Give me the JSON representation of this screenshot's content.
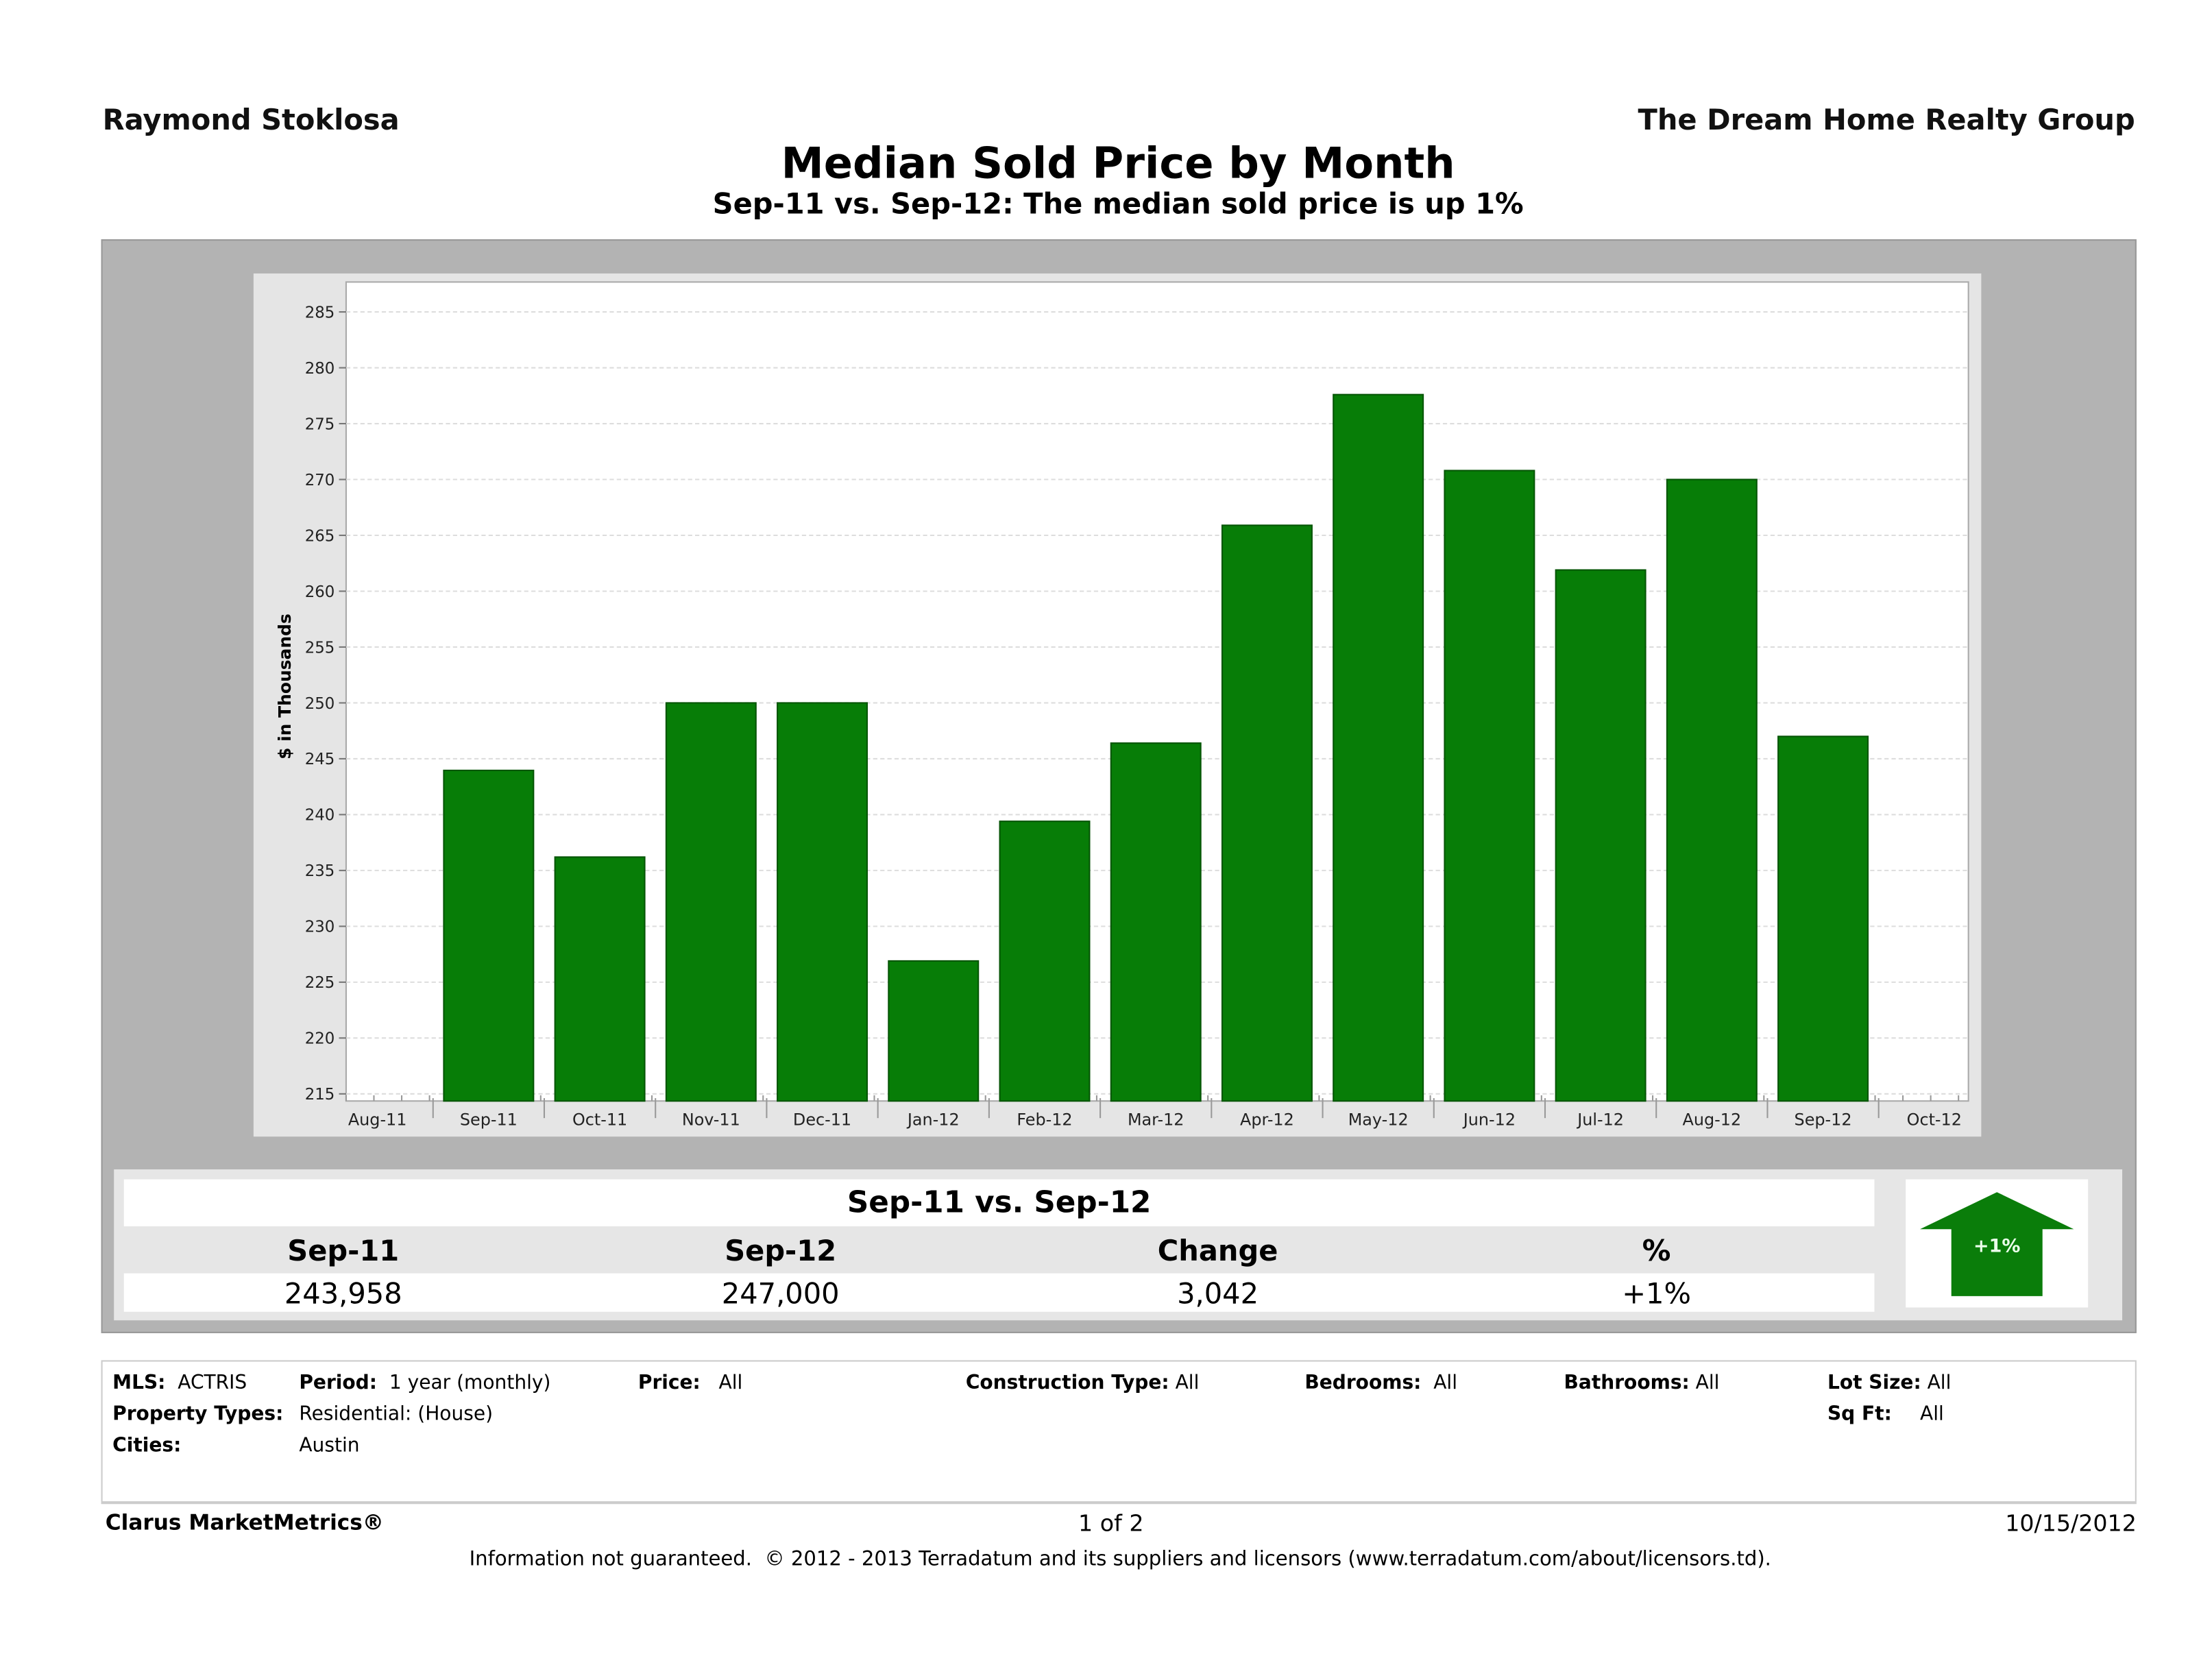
{
  "header": {
    "agent": "Raymond Stoklosa",
    "company": "The Dream Home Realty Group"
  },
  "summary": {
    "title": "Sep-11 vs. Sep-12",
    "columns": [
      "Sep-11",
      "Sep-12",
      "Change",
      "%"
    ],
    "values": [
      "243,958",
      "247,000",
      "3,042",
      "+1%"
    ],
    "badge": "+1%",
    "badge_color": "#0a7d0a"
  },
  "filters": {
    "mls_label": "MLS:",
    "mls": "ACTRIS",
    "period_label": "Period:",
    "period": "1 year (monthly)",
    "price_label": "Price:",
    "price": "All",
    "construction_label": "Construction Type:",
    "construction": "All",
    "bedrooms_label": "Bedrooms:",
    "bedrooms": "All",
    "bathrooms_label": "Bathrooms:",
    "bathrooms": "All",
    "lot_label": "Lot Size:",
    "lot": "All",
    "property_label": "Property Types:",
    "property": "Residential: (House)",
    "sqft_label": "Sq Ft:",
    "sqft": "All",
    "cities_label": "Cities:",
    "cities": "Austin"
  },
  "footer": {
    "brand": "Clarus MarketMetrics®",
    "page": "1 of 2",
    "date": "10/15/2012",
    "disclaimer": "Information not guaranteed.  © 2012 - 2013 Terradatum and its suppliers and licensors (www.terradatum.com/about/licensors.td)."
  },
  "chart_data": {
    "type": "bar",
    "title": "Median Sold Price by Month",
    "subtitle": "Sep-11 vs. Sep-12:  The median sold price is up 1%",
    "xlabel": "",
    "ylabel": "$ in Thousands",
    "ylim": [
      215,
      285
    ],
    "yticks": [
      215,
      220,
      225,
      230,
      235,
      240,
      245,
      250,
      255,
      260,
      265,
      270,
      275,
      280,
      285
    ],
    "x_ticks": [
      "Aug-11",
      "Sep-11",
      "Oct-11",
      "Nov-11",
      "Dec-11",
      "Jan-12",
      "Feb-12",
      "Mar-12",
      "Apr-12",
      "May-12",
      "Jun-12",
      "Jul-12",
      "Aug-12",
      "Sep-12",
      "Oct-12"
    ],
    "categories": [
      "Sep-11",
      "Oct-11",
      "Nov-11",
      "Dec-11",
      "Jan-12",
      "Feb-12",
      "Mar-12",
      "Apr-12",
      "May-12",
      "Jun-12",
      "Jul-12",
      "Aug-12",
      "Sep-12"
    ],
    "values": [
      243.958,
      236.2,
      250,
      250,
      226.9,
      239.4,
      246.4,
      265.9,
      277.6,
      270.8,
      261.9,
      270,
      247
    ],
    "bar_color": "#077d07",
    "grid": true
  }
}
